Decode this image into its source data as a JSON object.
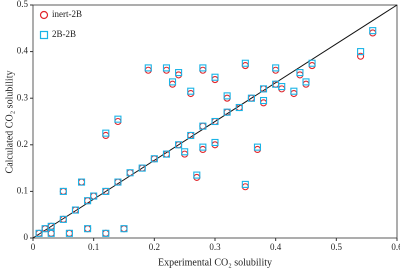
{
  "chart_data": {
    "type": "scatter",
    "x_label": "Experimental CO₂ solubility",
    "y_label": "Calculated CO₂ solubility",
    "x": [
      0.01,
      0.02,
      0.03,
      0.05,
      0.07,
      0.09,
      0.1,
      0.12,
      0.14,
      0.16,
      0.18,
      0.2,
      0.22,
      0.24,
      0.26,
      0.28,
      0.3,
      0.32,
      0.34,
      0.36,
      0.38,
      0.4,
      0.19,
      0.22,
      0.24,
      0.28,
      0.3,
      0.23,
      0.26,
      0.14,
      0.12,
      0.3,
      0.28,
      0.25,
      0.27,
      0.35,
      0.37,
      0.41,
      0.43,
      0.45,
      0.44,
      0.46,
      0.54,
      0.56,
      0.4,
      0.35,
      0.32,
      0.38,
      0.09,
      0.12,
      0.15,
      0.03,
      0.06,
      0.05,
      0.08
    ],
    "series": [
      {
        "name": "inert-2B",
        "color": "#e0242a",
        "marker": "circle",
        "values": [
          0.01,
          0.02,
          0.025,
          0.04,
          0.06,
          0.08,
          0.09,
          0.1,
          0.12,
          0.14,
          0.15,
          0.17,
          0.18,
          0.2,
          0.22,
          0.24,
          0.25,
          0.27,
          0.28,
          0.3,
          0.32,
          0.33,
          0.36,
          0.36,
          0.35,
          0.36,
          0.34,
          0.33,
          0.31,
          0.25,
          0.22,
          0.2,
          0.19,
          0.18,
          0.13,
          0.11,
          0.19,
          0.32,
          0.31,
          0.33,
          0.35,
          0.37,
          0.39,
          0.44,
          0.36,
          0.37,
          0.3,
          0.29,
          0.02,
          0.01,
          0.02,
          0.01,
          0.01,
          0.1,
          0.12
        ]
      },
      {
        "name": "2B-2B",
        "color": "#1ab3e6",
        "marker": "square",
        "values": [
          0.01,
          0.02,
          0.025,
          0.04,
          0.06,
          0.08,
          0.09,
          0.1,
          0.12,
          0.14,
          0.15,
          0.17,
          0.18,
          0.2,
          0.22,
          0.24,
          0.25,
          0.27,
          0.28,
          0.3,
          0.32,
          0.33,
          0.365,
          0.365,
          0.355,
          0.365,
          0.345,
          0.335,
          0.315,
          0.255,
          0.225,
          0.205,
          0.195,
          0.185,
          0.135,
          0.115,
          0.195,
          0.325,
          0.315,
          0.335,
          0.355,
          0.375,
          0.4,
          0.445,
          0.365,
          0.375,
          0.305,
          0.295,
          0.02,
          0.01,
          0.02,
          0.01,
          0.01,
          0.1,
          0.12
        ]
      }
    ],
    "xlim": [
      0,
      0.6
    ],
    "xticks": [
      0,
      0.1,
      0.2,
      0.3,
      0.4,
      0.5,
      0.6
    ],
    "ylim": [
      0,
      0.5
    ],
    "yticks": [
      0,
      0.1,
      0.2,
      0.3,
      0.4,
      0.5
    ],
    "legend": "upper left"
  }
}
